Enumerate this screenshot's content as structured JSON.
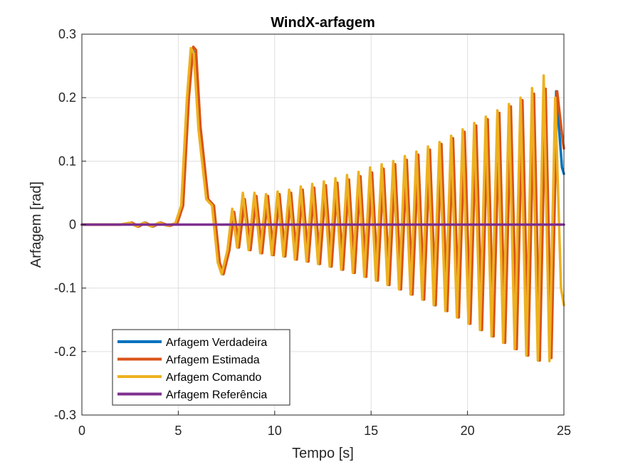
{
  "chart_data": {
    "type": "line",
    "title": "WindX-arfagem",
    "xlabel": "Tempo [s]",
    "ylabel": "Arfagem [rad]",
    "xlim": [
      0,
      25
    ],
    "ylim": [
      -0.3,
      0.3
    ],
    "xticks": [
      0,
      5,
      10,
      15,
      20,
      25
    ],
    "xtick_labels": [
      "0",
      "5",
      "10",
      "15",
      "20",
      "25"
    ],
    "yticks": [
      -0.3,
      -0.2,
      -0.1,
      0,
      0.1,
      0.2,
      0.3
    ],
    "ytick_labels": [
      "-0.3",
      "-0.2",
      "-0.1",
      "0",
      "0.1",
      "0.2",
      "0.3"
    ],
    "grid": true,
    "legend_position": "bottom-left",
    "series": [
      {
        "name": "Arfagem Verdadeira",
        "color": "#0072BD",
        "x": [
          0,
          1,
          2,
          2.55,
          2.9,
          3.25,
          3.65,
          4.05,
          4.5,
          4.9,
          5.2,
          5.5,
          5.72,
          5.88,
          6.1,
          6.5,
          6.8,
          7.1,
          7.3,
          7.6,
          7.85,
          8.1,
          8.4,
          8.7,
          9.0,
          9.3,
          9.6,
          9.9,
          10.2,
          10.5,
          10.8,
          11.1,
          11.4,
          11.7,
          12.0,
          12.3,
          12.6,
          12.9,
          13.2,
          13.5,
          13.8,
          14.1,
          14.4,
          14.7,
          15.0,
          15.3,
          15.6,
          15.9,
          16.2,
          16.5,
          16.8,
          17.1,
          17.4,
          17.7,
          18.0,
          18.3,
          18.6,
          18.9,
          19.2,
          19.5,
          19.8,
          20.1,
          20.4,
          20.7,
          21.0,
          21.3,
          21.6,
          21.9,
          22.2,
          22.5,
          22.8,
          23.1,
          23.4,
          23.7,
          24.0,
          24.3,
          24.6,
          24.9,
          25.0
        ],
        "y": [
          0,
          0,
          0,
          0.003,
          -0.003,
          0.003,
          -0.003,
          0.003,
          -0.002,
          0.002,
          0.03,
          0.2,
          0.275,
          0.27,
          0.15,
          0.04,
          0.03,
          -0.06,
          -0.078,
          -0.04,
          0.02,
          -0.036,
          0.04,
          -0.04,
          0.045,
          -0.045,
          0.045,
          -0.048,
          0.048,
          -0.05,
          0.05,
          -0.055,
          0.055,
          -0.058,
          0.058,
          -0.062,
          0.062,
          -0.066,
          0.066,
          -0.071,
          0.071,
          -0.076,
          0.076,
          -0.082,
          0.082,
          -0.088,
          0.088,
          -0.095,
          0.095,
          -0.102,
          0.102,
          -0.11,
          0.11,
          -0.118,
          0.118,
          -0.127,
          0.127,
          -0.136,
          0.136,
          -0.146,
          0.146,
          -0.156,
          0.156,
          -0.166,
          0.166,
          -0.176,
          0.176,
          -0.186,
          0.186,
          -0.196,
          0.196,
          -0.206,
          0.206,
          -0.214,
          0.214,
          -0.21,
          0.21,
          0.09,
          0.08
        ]
      },
      {
        "name": "Arfagem Estimada",
        "color": "#D95319",
        "x": [
          0,
          1,
          2,
          2.6,
          2.95,
          3.3,
          3.7,
          4.1,
          4.55,
          4.95,
          5.25,
          5.55,
          5.78,
          5.92,
          6.15,
          6.55,
          6.85,
          7.15,
          7.35,
          7.65,
          7.9,
          8.15,
          8.45,
          8.75,
          9.05,
          9.35,
          9.65,
          9.95,
          10.25,
          10.55,
          10.85,
          11.15,
          11.45,
          11.75,
          12.05,
          12.35,
          12.65,
          12.95,
          13.25,
          13.55,
          13.85,
          14.15,
          14.45,
          14.75,
          15.05,
          15.35,
          15.65,
          15.95,
          16.25,
          16.55,
          16.85,
          17.15,
          17.45,
          17.75,
          18.05,
          18.35,
          18.65,
          18.95,
          19.25,
          19.55,
          19.85,
          20.15,
          20.45,
          20.75,
          21.05,
          21.35,
          21.65,
          21.95,
          22.25,
          22.55,
          22.85,
          23.15,
          23.45,
          23.75,
          24.05,
          24.35,
          24.65,
          24.95,
          25.0
        ],
        "y": [
          0,
          0,
          0,
          0.003,
          -0.003,
          0.003,
          -0.003,
          0.003,
          -0.002,
          0.002,
          0.03,
          0.2,
          0.28,
          0.275,
          0.155,
          0.04,
          0.03,
          -0.06,
          -0.078,
          -0.04,
          0.02,
          -0.036,
          0.04,
          -0.04,
          0.045,
          -0.045,
          0.045,
          -0.048,
          0.048,
          -0.05,
          0.05,
          -0.055,
          0.055,
          -0.058,
          0.058,
          -0.062,
          0.062,
          -0.066,
          0.066,
          -0.071,
          0.071,
          -0.076,
          0.076,
          -0.082,
          0.082,
          -0.088,
          0.088,
          -0.095,
          0.095,
          -0.102,
          0.102,
          -0.11,
          0.11,
          -0.118,
          0.118,
          -0.127,
          0.127,
          -0.136,
          0.136,
          -0.146,
          0.146,
          -0.156,
          0.156,
          -0.166,
          0.166,
          -0.176,
          0.176,
          -0.186,
          0.186,
          -0.196,
          0.196,
          -0.206,
          0.206,
          -0.214,
          0.214,
          -0.21,
          0.21,
          0.13,
          0.12
        ]
      },
      {
        "name": "Arfagem Comando",
        "color": "#EDB120",
        "x": [
          0,
          1,
          2,
          2.5,
          2.85,
          3.2,
          3.6,
          4.0,
          4.45,
          4.85,
          5.15,
          5.45,
          5.65,
          5.8,
          6.05,
          6.45,
          6.75,
          7.05,
          7.25,
          7.55,
          7.8,
          8.05,
          8.35,
          8.65,
          8.95,
          9.25,
          9.55,
          9.85,
          10.15,
          10.45,
          10.75,
          11.05,
          11.35,
          11.65,
          11.95,
          12.25,
          12.55,
          12.85,
          13.15,
          13.45,
          13.75,
          14.05,
          14.35,
          14.65,
          14.95,
          15.25,
          15.55,
          15.85,
          16.15,
          16.45,
          16.75,
          17.05,
          17.35,
          17.65,
          17.95,
          18.25,
          18.55,
          18.85,
          19.15,
          19.45,
          19.75,
          20.05,
          20.35,
          20.65,
          20.95,
          21.25,
          21.55,
          21.85,
          22.15,
          22.45,
          22.75,
          23.05,
          23.35,
          23.65,
          23.95,
          24.25,
          24.55,
          24.85,
          25.0
        ],
        "y": [
          0,
          0,
          0,
          0.003,
          -0.003,
          0.003,
          -0.003,
          0.003,
          -0.002,
          0.002,
          0.03,
          0.2,
          0.278,
          0.27,
          0.15,
          0.04,
          0.03,
          -0.06,
          -0.078,
          -0.04,
          0.025,
          -0.036,
          0.05,
          -0.04,
          0.05,
          -0.045,
          0.048,
          -0.048,
          0.052,
          -0.05,
          0.055,
          -0.055,
          0.06,
          -0.058,
          0.064,
          -0.062,
          0.068,
          -0.066,
          0.073,
          -0.071,
          0.078,
          -0.076,
          0.083,
          -0.082,
          0.09,
          -0.088,
          0.095,
          -0.095,
          0.1,
          -0.102,
          0.108,
          -0.11,
          0.115,
          -0.118,
          0.123,
          -0.127,
          0.13,
          -0.136,
          0.14,
          -0.146,
          0.15,
          -0.156,
          0.16,
          -0.166,
          0.17,
          -0.176,
          0.18,
          -0.186,
          0.19,
          -0.196,
          0.2,
          -0.206,
          0.215,
          -0.214,
          0.235,
          -0.215,
          0.2,
          -0.1,
          -0.127
        ]
      },
      {
        "name": "Arfagem Referência",
        "color": "#7E2F8E",
        "x": [
          0,
          25
        ],
        "y": [
          0,
          0
        ]
      }
    ]
  }
}
